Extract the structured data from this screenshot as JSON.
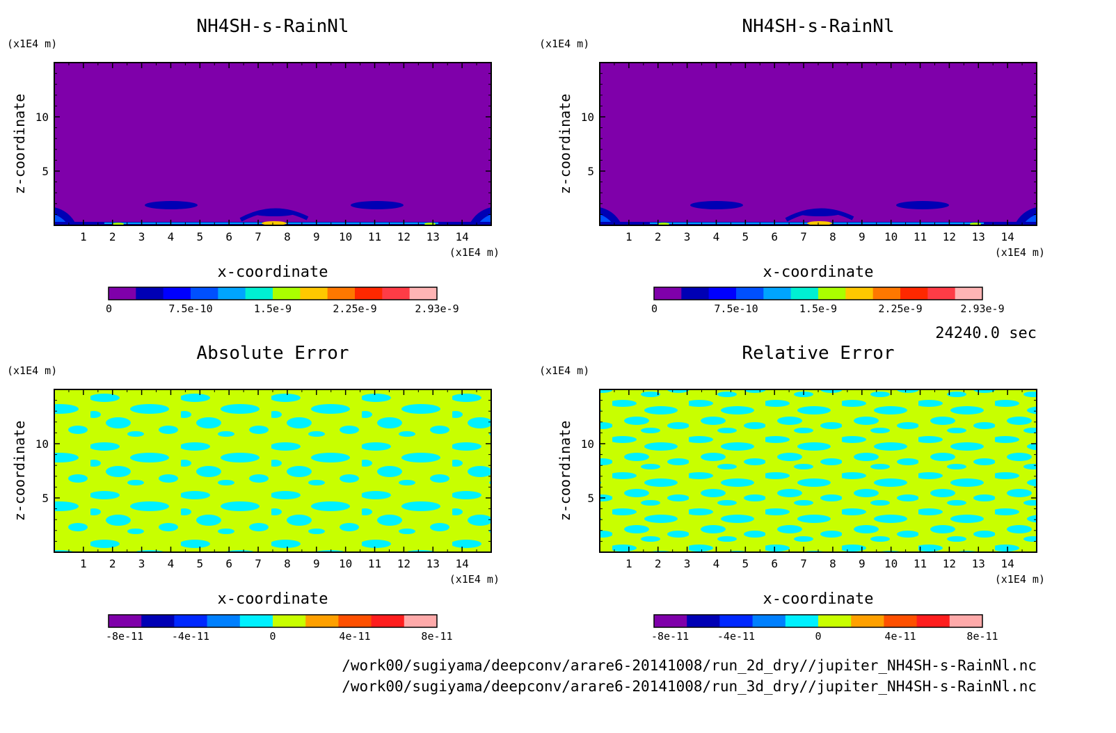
{
  "time_label": "24240.0 sec",
  "file_paths": [
    "/work00/sugiyama/deepconv/arare6-20141008/run_2d_dry//jupiter_NH4SH-s-RainNl.nc",
    "/work00/sugiyama/deepconv/arare6-20141008/run_3d_dry//jupiter_NH4SH-s-RainNl.nc"
  ],
  "chart_data": [
    {
      "type": "heatmap",
      "title": "NH4SH-s-RainNl",
      "xlabel": "x-coordinate",
      "ylabel": "z-coordinate",
      "x_unit": "(x1E4 m)",
      "y_unit": "(x1E4 m)",
      "x_ticks": [
        "1",
        "2",
        "3",
        "4",
        "5",
        "6",
        "7",
        "8",
        "9",
        "10",
        "11",
        "12",
        "13",
        "14"
      ],
      "y_ticks": [
        "5",
        "10"
      ],
      "xlim": [
        0,
        15
      ],
      "ylim": [
        0,
        15
      ],
      "colorbar": {
        "colors": [
          "#7f00aa",
          "#0000b4",
          "#0000ff",
          "#0050ff",
          "#00a5ff",
          "#00f0d2",
          "#aaff00",
          "#ffc800",
          "#ff7800",
          "#ff2800",
          "#ff3c46",
          "#ffb4b4"
        ],
        "labels": [
          "0",
          "7.5e-10",
          "1.5e-9",
          "2.25e-9",
          "2.93e-9"
        ]
      }
    },
    {
      "type": "heatmap",
      "title": "NH4SH-s-RainNl",
      "xlabel": "x-coordinate",
      "ylabel": "z-coordinate",
      "x_unit": "(x1E4 m)",
      "y_unit": "(x1E4 m)",
      "x_ticks": [
        "1",
        "2",
        "3",
        "4",
        "5",
        "6",
        "7",
        "8",
        "9",
        "10",
        "11",
        "12",
        "13",
        "14"
      ],
      "y_ticks": [
        "5",
        "10"
      ],
      "xlim": [
        0,
        15
      ],
      "ylim": [
        0,
        15
      ],
      "colorbar": {
        "colors": [
          "#7f00aa",
          "#0000b4",
          "#0000ff",
          "#0050ff",
          "#00a5ff",
          "#00f0d2",
          "#aaff00",
          "#ffc800",
          "#ff7800",
          "#ff2800",
          "#ff3c46",
          "#ffb4b4"
        ],
        "labels": [
          "0",
          "7.5e-10",
          "1.5e-9",
          "2.25e-9",
          "2.93e-9"
        ]
      }
    },
    {
      "type": "heatmap",
      "title": "Absolute Error",
      "xlabel": "x-coordinate",
      "ylabel": "z-coordinate",
      "x_unit": "(x1E4 m)",
      "y_unit": "(x1E4 m)",
      "x_ticks": [
        "1",
        "2",
        "3",
        "4",
        "5",
        "6",
        "7",
        "8",
        "9",
        "10",
        "11",
        "12",
        "13",
        "14"
      ],
      "y_ticks": [
        "5",
        "10"
      ],
      "xlim": [
        0,
        15
      ],
      "ylim": [
        0,
        15
      ],
      "colorbar": {
        "colors": [
          "#7f00aa",
          "#0000b4",
          "#0028ff",
          "#0080ff",
          "#00f0ff",
          "#c8ff00",
          "#ffa000",
          "#ff5000",
          "#ff1e1e",
          "#ffaaaa"
        ],
        "labels": [
          "-8e-11",
          "-4e-11",
          "0",
          "4e-11",
          "8e-11"
        ]
      }
    },
    {
      "type": "heatmap",
      "title": "Relative Error",
      "xlabel": "x-coordinate",
      "ylabel": "z-coordinate",
      "x_unit": "(x1E4 m)",
      "y_unit": "(x1E4 m)",
      "x_ticks": [
        "1",
        "2",
        "3",
        "4",
        "5",
        "6",
        "7",
        "8",
        "9",
        "10",
        "11",
        "12",
        "13",
        "14"
      ],
      "y_ticks": [
        "5",
        "10"
      ],
      "xlim": [
        0,
        15
      ],
      "ylim": [
        0,
        15
      ],
      "colorbar": {
        "colors": [
          "#7f00aa",
          "#0000b4",
          "#0028ff",
          "#0080ff",
          "#00f0ff",
          "#c8ff00",
          "#ffa000",
          "#ff5000",
          "#ff1e1e",
          "#ffaaaa"
        ],
        "labels": [
          "-8e-11",
          "-4e-11",
          "0",
          "4e-11",
          "8e-11"
        ]
      }
    }
  ]
}
